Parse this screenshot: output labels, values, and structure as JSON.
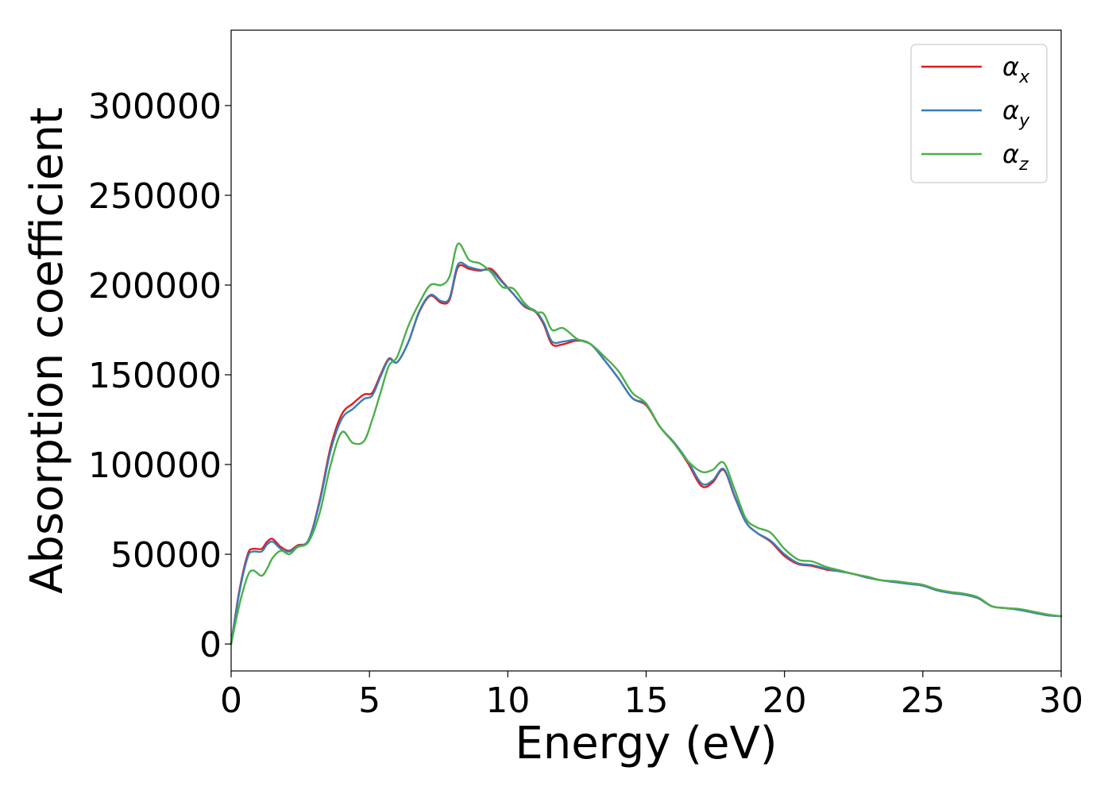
{
  "chart_data": {
    "type": "line",
    "title": "",
    "xlabel": "Energy (eV)",
    "ylabel": "Absorption coefficient",
    "xlim": [
      0,
      30
    ],
    "ylim": [
      -15000,
      342000
    ],
    "x_ticks": [
      "0",
      "5",
      "10",
      "15",
      "20",
      "25",
      "30"
    ],
    "y_ticks": [
      "0",
      "50000",
      "100000",
      "150000",
      "200000",
      "250000",
      "300000"
    ],
    "grid": false,
    "legend_position": "top-right",
    "series": [
      {
        "name": "α_x",
        "name_base": "α",
        "name_sub": "x",
        "color": "#e41a1c",
        "x": [
          0,
          0.3,
          0.6,
          0.8,
          1.1,
          1.3,
          1.5,
          1.8,
          2.1,
          2.4,
          2.8,
          3.2,
          3.6,
          4.0,
          4.4,
          4.8,
          5.1,
          5.4,
          5.7,
          6.0,
          6.4,
          6.8,
          7.2,
          7.6,
          7.9,
          8.2,
          8.6,
          9.0,
          9.4,
          9.8,
          10.2,
          10.6,
          11.0,
          11.3,
          11.6,
          12.0,
          12.5,
          13.0,
          13.5,
          14.0,
          14.5,
          15.0,
          15.5,
          16.0,
          16.5,
          17.0,
          17.4,
          17.8,
          18.2,
          18.6,
          19.0,
          19.5,
          20.0,
          20.5,
          21.0,
          21.5,
          22.0,
          22.5,
          23.0,
          23.5,
          24.0,
          24.5,
          25.0,
          25.5,
          26.0,
          26.5,
          27.0,
          27.5,
          28.0,
          28.5,
          29.0,
          29.5,
          30.0
        ],
        "values": [
          0,
          30000,
          50000,
          53000,
          53000,
          57000,
          58500,
          54000,
          52000,
          55000,
          58000,
          80000,
          110000,
          128000,
          134000,
          139000,
          140000,
          150000,
          159000,
          157000,
          168000,
          185000,
          194000,
          190000,
          192000,
          210000,
          209000,
          208000,
          209000,
          202000,
          195000,
          188000,
          185000,
          178000,
          167000,
          167000,
          169000,
          167000,
          158000,
          148000,
          137000,
          133000,
          121000,
          112000,
          101000,
          88000,
          90000,
          97000,
          82000,
          68000,
          62000,
          57000,
          49000,
          44500,
          43500,
          41500,
          40500,
          39000,
          37000,
          35500,
          34500,
          33500,
          32500,
          30000,
          28500,
          27500,
          25500,
          21000,
          20000,
          19000,
          17500,
          16000,
          15500
        ]
      },
      {
        "name": "α_y",
        "name_base": "α",
        "name_sub": "y",
        "color": "#377eb8",
        "x": [
          0,
          0.3,
          0.6,
          0.8,
          1.1,
          1.3,
          1.5,
          1.8,
          2.1,
          2.4,
          2.8,
          3.2,
          3.6,
          4.0,
          4.4,
          4.8,
          5.1,
          5.4,
          5.7,
          6.0,
          6.4,
          6.8,
          7.2,
          7.6,
          7.9,
          8.2,
          8.6,
          9.0,
          9.4,
          9.8,
          10.2,
          10.6,
          11.0,
          11.3,
          11.6,
          12.0,
          12.5,
          13.0,
          13.5,
          14.0,
          14.5,
          15.0,
          15.5,
          16.0,
          16.5,
          17.0,
          17.4,
          17.8,
          18.2,
          18.6,
          19.0,
          19.5,
          20.0,
          20.5,
          21.0,
          21.5,
          22.0,
          22.5,
          23.0,
          23.5,
          24.0,
          24.5,
          25.0,
          25.5,
          26.0,
          26.5,
          27.0,
          27.5,
          28.0,
          28.5,
          29.0,
          29.5,
          30.0
        ],
        "values": [
          0,
          29000,
          48500,
          51500,
          51500,
          55500,
          57000,
          53000,
          51500,
          54500,
          58000,
          79000,
          108000,
          125500,
          131000,
          136500,
          138500,
          149000,
          158500,
          157000,
          168000,
          185500,
          194500,
          191000,
          193000,
          211500,
          210000,
          208500,
          208000,
          201500,
          195000,
          188500,
          185500,
          179000,
          168500,
          168500,
          169500,
          167000,
          158000,
          148000,
          137000,
          133500,
          121000,
          112500,
          102000,
          89500,
          91000,
          97500,
          82500,
          68000,
          62000,
          57500,
          50000,
          45000,
          44000,
          42000,
          40500,
          39000,
          37000,
          35500,
          34500,
          33500,
          32500,
          30000,
          28500,
          27500,
          25500,
          21000,
          20000,
          19000,
          17500,
          16000,
          15500
        ]
      },
      {
        "name": "α_z",
        "name_base": "α",
        "name_sub": "z",
        "color": "#4daf4a",
        "x": [
          0,
          0.3,
          0.6,
          0.8,
          1.1,
          1.3,
          1.5,
          1.8,
          2.1,
          2.4,
          2.8,
          3.2,
          3.6,
          4.0,
          4.4,
          4.8,
          5.1,
          5.4,
          5.7,
          6.0,
          6.4,
          6.8,
          7.2,
          7.6,
          7.9,
          8.2,
          8.6,
          9.0,
          9.4,
          9.8,
          10.2,
          10.6,
          11.0,
          11.3,
          11.6,
          12.0,
          12.5,
          13.0,
          13.5,
          14.0,
          14.5,
          15.0,
          15.5,
          16.0,
          16.5,
          17.0,
          17.4,
          17.8,
          18.2,
          18.6,
          19.0,
          19.5,
          20.0,
          20.5,
          21.0,
          21.5,
          22.0,
          22.5,
          23.0,
          23.5,
          24.0,
          24.5,
          25.0,
          25.5,
          26.0,
          26.5,
          27.0,
          27.5,
          28.0,
          28.5,
          29.0,
          29.5,
          30.0
        ],
        "values": [
          0,
          22000,
          38000,
          41000,
          38000,
          42000,
          48000,
          52000,
          50000,
          54000,
          57000,
          73000,
          100000,
          118000,
          112000,
          113000,
          125000,
          140000,
          155000,
          160000,
          177000,
          190000,
          200000,
          200000,
          205000,
          223000,
          214000,
          212000,
          207000,
          199000,
          198000,
          190000,
          185000,
          184000,
          175000,
          176000,
          170000,
          167000,
          160000,
          152000,
          140000,
          134000,
          121000,
          112000,
          102000,
          96000,
          97000,
          101000,
          86000,
          70000,
          65000,
          62000,
          53000,
          47000,
          46000,
          43000,
          41000,
          39000,
          37500,
          35500,
          35000,
          34000,
          33000,
          30500,
          29000,
          28000,
          26000,
          21000,
          20000,
          19500,
          18000,
          16500,
          15500
        ]
      }
    ]
  }
}
